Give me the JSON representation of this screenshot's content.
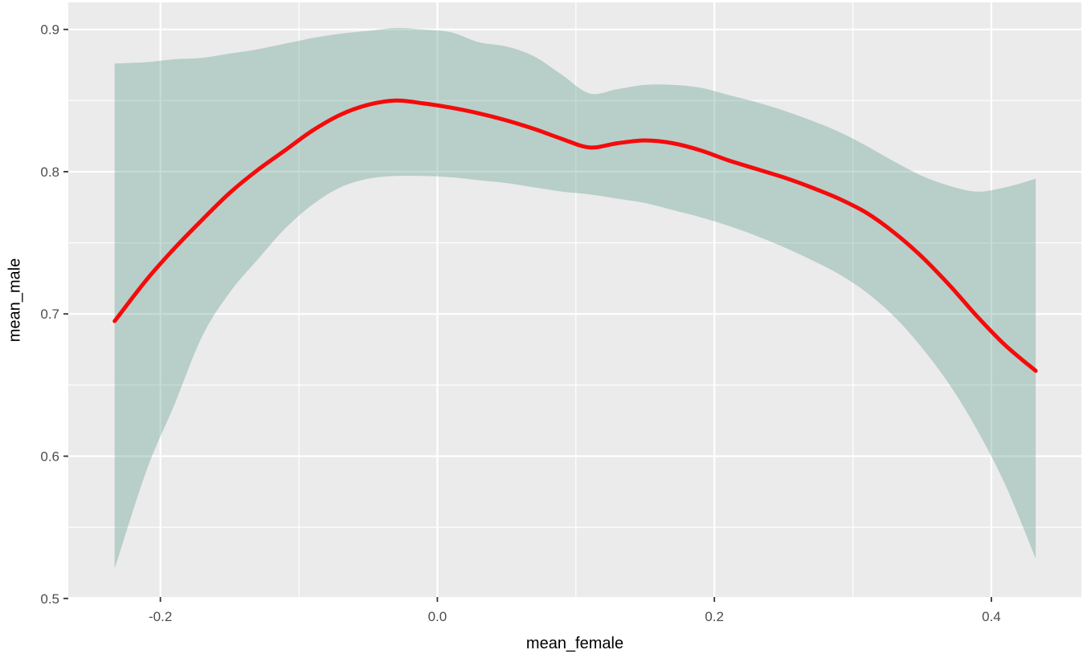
{
  "chart_data": {
    "type": "line",
    "title": "",
    "xlabel": "mean_female",
    "ylabel": "mean_male",
    "legend_position": "none",
    "grid": "white major+minor gridlines on gray panel",
    "xlim": [
      -0.2665,
      0.465
    ],
    "ylim": [
      0.501,
      0.919
    ],
    "x_tick_values": [
      -0.2,
      0.0,
      0.2,
      0.4
    ],
    "x_tick_labels": [
      "-0.2",
      "0.0",
      "0.2",
      "0.4"
    ],
    "y_tick_values": [
      0.5,
      0.6,
      0.7,
      0.8,
      0.9
    ],
    "y_tick_labels": [
      "0.5",
      "0.6",
      "0.7",
      "0.8",
      "0.9"
    ],
    "x_minor": [
      -0.1,
      0.1,
      0.3
    ],
    "y_minor": [
      0.55,
      0.65,
      0.75,
      0.85
    ],
    "style": {
      "panel_bg": "#ebebeb",
      "grid_color": "#ffffff",
      "tick_color": "#333333",
      "tick_label_color": "#4d4d4d",
      "axis_title_color": "#000000"
    },
    "x": [
      -0.233,
      -0.21,
      -0.19,
      -0.17,
      -0.15,
      -0.13,
      -0.11,
      -0.09,
      -0.07,
      -0.05,
      -0.03,
      -0.01,
      0.01,
      0.03,
      0.05,
      0.07,
      0.09,
      0.11,
      0.13,
      0.15,
      0.17,
      0.19,
      0.21,
      0.23,
      0.25,
      0.27,
      0.29,
      0.31,
      0.33,
      0.35,
      0.37,
      0.39,
      0.41,
      0.432
    ],
    "series": [
      {
        "name": "loess-smooth-line",
        "color": "#f40b0b",
        "width": 5,
        "y": [
          0.695,
          0.724,
          0.746,
          0.766,
          0.785,
          0.801,
          0.815,
          0.829,
          0.84,
          0.847,
          0.85,
          0.848,
          0.845,
          0.841,
          0.836,
          0.83,
          0.823,
          0.817,
          0.82,
          0.822,
          0.82,
          0.815,
          0.808,
          0.802,
          0.796,
          0.789,
          0.781,
          0.771,
          0.757,
          0.74,
          0.72,
          0.698,
          0.678,
          0.66
        ]
      }
    ],
    "band": {
      "name": "confidence-interval-ribbon",
      "fill": "#599889",
      "opacity": 0.35,
      "upper": [
        0.876,
        0.877,
        0.879,
        0.88,
        0.883,
        0.886,
        0.89,
        0.894,
        0.897,
        0.899,
        0.901,
        0.9,
        0.898,
        0.891,
        0.888,
        0.881,
        0.868,
        0.855,
        0.858,
        0.861,
        0.861,
        0.859,
        0.854,
        0.849,
        0.843,
        0.836,
        0.828,
        0.818,
        0.807,
        0.797,
        0.79,
        0.786,
        0.789,
        0.795
      ],
      "lower": [
        0.521,
        0.59,
        0.636,
        0.684,
        0.715,
        0.738,
        0.76,
        0.777,
        0.789,
        0.795,
        0.797,
        0.797,
        0.796,
        0.794,
        0.792,
        0.789,
        0.786,
        0.784,
        0.781,
        0.778,
        0.773,
        0.768,
        0.762,
        0.755,
        0.747,
        0.738,
        0.728,
        0.715,
        0.698,
        0.676,
        0.65,
        0.618,
        0.58,
        0.528
      ]
    }
  }
}
